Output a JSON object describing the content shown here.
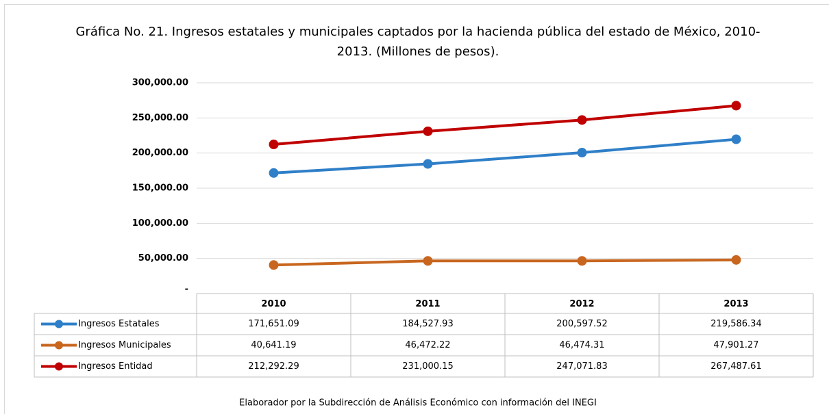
{
  "chart_data": {
    "type": "line",
    "title": "Gráfica No. 21. Ingresos estatales y municipales captados por la hacienda pública del estado de México, 2010-2013. (Millones de pesos).",
    "source": "Elaborador por la Subdirección de Análisis Económico con información del INEGI",
    "categories": [
      "2010",
      "2011",
      "2012",
      "2013"
    ],
    "series": [
      {
        "name": "Ingresos Estatales",
        "color": "#2f7fc8",
        "values": [
          171651.09,
          184527.93,
          200597.52,
          219586.34
        ],
        "value_labels": [
          "171,651.09",
          "184,527.93",
          "200,597.52",
          "219,586.34"
        ]
      },
      {
        "name": "Ingresos Municipales",
        "color": "#c8661f",
        "values": [
          40641.19,
          46472.22,
          46474.31,
          47901.27
        ],
        "value_labels": [
          "40,641.19",
          "46,472.22",
          "46,474.31",
          "47,901.27"
        ]
      },
      {
        "name": "Ingresos Entidad",
        "color": "#c00000",
        "values": [
          212292.29,
          231000.15,
          247071.83,
          267487.61
        ],
        "value_labels": [
          "212,292.29",
          "231,000.15",
          "247,071.83",
          "267,487.61"
        ]
      }
    ],
    "ylim": [
      0,
      300000
    ],
    "yticks": [
      {
        "value": 0,
        "label": "-"
      },
      {
        "value": 50000,
        "label": "50,000.00"
      },
      {
        "value": 100000,
        "label": "100,000.00"
      },
      {
        "value": 150000,
        "label": "150,000.00"
      },
      {
        "value": 200000,
        "label": "200,000.00"
      },
      {
        "value": 250000,
        "label": "250,000.00"
      },
      {
        "value": 300000,
        "label": "300,000.00"
      }
    ],
    "grid": true
  }
}
